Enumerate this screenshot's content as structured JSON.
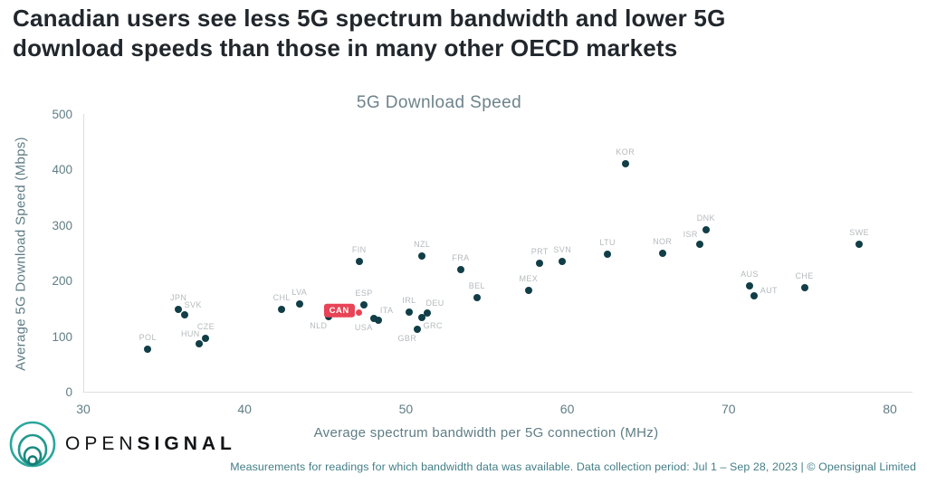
{
  "header": {
    "title_line1": "Canadian users see less 5G spectrum bandwidth and lower 5G",
    "title_line2": "download speeds than those in many other OECD markets"
  },
  "chart_data": {
    "type": "scatter",
    "title": "5G Download Speed",
    "xlabel": "Average spectrum bandwidth per 5G connection (MHz)",
    "ylabel": "Average 5G Download Speed (Mbps)",
    "xlim": [
      30,
      80
    ],
    "ylim": [
      0,
      500
    ],
    "xticks": [
      30,
      40,
      50,
      60,
      70,
      80
    ],
    "yticks": [
      0,
      100,
      200,
      300,
      400,
      500
    ],
    "grid": false,
    "legend": "none",
    "highlight_code": "CAN",
    "points": [
      {
        "code": "POL",
        "x": 34.0,
        "y": 76,
        "label_pos": "above"
      },
      {
        "code": "JPN",
        "x": 35.9,
        "y": 148,
        "label_pos": "above"
      },
      {
        "code": "SVK",
        "x": 36.3,
        "y": 138,
        "label_pos": "above-right"
      },
      {
        "code": "HUN",
        "x": 37.2,
        "y": 86,
        "label_pos": "above-left"
      },
      {
        "code": "CZE",
        "x": 37.6,
        "y": 96,
        "label_pos": "above"
      },
      {
        "code": "CHL",
        "x": 42.3,
        "y": 148,
        "label_pos": "above"
      },
      {
        "code": "LVA",
        "x": 43.4,
        "y": 158,
        "label_pos": "above"
      },
      {
        "code": "NLD",
        "x": 45.2,
        "y": 135,
        "label_pos": "below-left"
      },
      {
        "code": "CAN",
        "x": 47.1,
        "y": 143,
        "label_pos": "badge-left"
      },
      {
        "code": "ESP",
        "x": 47.4,
        "y": 157,
        "label_pos": "above"
      },
      {
        "code": "USA",
        "x": 48.0,
        "y": 132,
        "label_pos": "below-left"
      },
      {
        "code": "ITA",
        "x": 48.3,
        "y": 129,
        "label_pos": "above-right"
      },
      {
        "code": "FIN",
        "x": 47.1,
        "y": 235,
        "label_pos": "above"
      },
      {
        "code": "IRL",
        "x": 50.2,
        "y": 144,
        "label_pos": "above"
      },
      {
        "code": "GBR",
        "x": 50.7,
        "y": 113,
        "label_pos": "below-left"
      },
      {
        "code": "GRC",
        "x": 51.0,
        "y": 134,
        "label_pos": "below-right"
      },
      {
        "code": "DEU",
        "x": 51.3,
        "y": 142,
        "label_pos": "above-right"
      },
      {
        "code": "NZL",
        "x": 51.0,
        "y": 245,
        "label_pos": "above"
      },
      {
        "code": "FRA",
        "x": 53.4,
        "y": 220,
        "label_pos": "above"
      },
      {
        "code": "BEL",
        "x": 54.4,
        "y": 169,
        "label_pos": "above"
      },
      {
        "code": "MEX",
        "x": 57.6,
        "y": 183,
        "label_pos": "above"
      },
      {
        "code": "PRT",
        "x": 58.3,
        "y": 232,
        "label_pos": "above"
      },
      {
        "code": "SVN",
        "x": 59.7,
        "y": 235,
        "label_pos": "above"
      },
      {
        "code": "LTU",
        "x": 62.5,
        "y": 248,
        "label_pos": "above"
      },
      {
        "code": "KOR",
        "x": 63.6,
        "y": 410,
        "label_pos": "above"
      },
      {
        "code": "NOR",
        "x": 65.9,
        "y": 250,
        "label_pos": "above"
      },
      {
        "code": "ISR",
        "x": 68.2,
        "y": 265,
        "label_pos": "above-left"
      },
      {
        "code": "DNK",
        "x": 68.6,
        "y": 292,
        "label_pos": "above"
      },
      {
        "code": "AUS",
        "x": 71.3,
        "y": 191,
        "label_pos": "above"
      },
      {
        "code": "AUT",
        "x": 71.6,
        "y": 173,
        "label_pos": "right-above"
      },
      {
        "code": "CHE",
        "x": 74.7,
        "y": 188,
        "label_pos": "above"
      },
      {
        "code": "SWE",
        "x": 78.1,
        "y": 266,
        "label_pos": "above"
      }
    ]
  },
  "logo": {
    "part1": "OPEN",
    "part2": "SIGNAL"
  },
  "footer": {
    "note": "Measurements for readings for which bandwidth data was available. Data collection period: Jul 1 – Sep 28, 2023 | © Opensignal Limited"
  },
  "colors": {
    "dot": "#113e47",
    "highlight": "#e84356",
    "point_label": "#b5babd",
    "axis_text": "#5f7d85",
    "chart_title_text": "#6e838b",
    "heading_text": "#21272c",
    "footer_text": "#437e87",
    "axis_line": "#dcdfe1",
    "logo_teal": "#2aa79d"
  }
}
